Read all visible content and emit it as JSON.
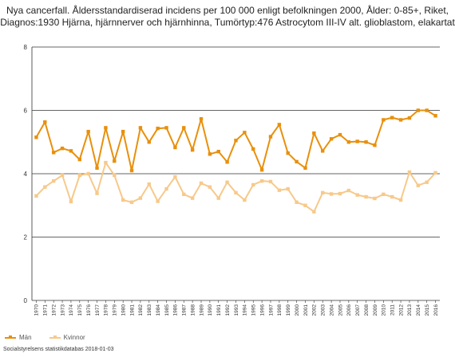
{
  "chart_data": {
    "type": "line",
    "title": "Nya cancerfall. Åldersstandardiserad incidens per 100 000 enligt befolkningen 2000, Ålder: 0-85+, Riket,",
    "subtitle": "Diagnos:1930 Hjärna, hjärnnerver och hjärnhinna, Tumörtyp:476 Astrocytom III-IV alt. glioblastom, elakartat",
    "xlabel": "",
    "ylabel": "",
    "ylim": [
      0,
      8
    ],
    "yticks": [
      0,
      2,
      4,
      6,
      8
    ],
    "grid": true,
    "legend_position": "bottom-left",
    "x": [
      "1970",
      "1971",
      "1972",
      "1973",
      "1974",
      "1975",
      "1976",
      "1977",
      "1978",
      "1979",
      "1980",
      "1981",
      "1982",
      "1983",
      "1984",
      "1985",
      "1986",
      "1987",
      "1988",
      "1989",
      "1990",
      "1991",
      "1992",
      "1993",
      "1994",
      "1995",
      "1996",
      "1997",
      "1998",
      "1999",
      "2000",
      "2001",
      "2002",
      "2003",
      "2004",
      "2005",
      "2006",
      "2007",
      "2008",
      "2009",
      "2010",
      "2011",
      "2012",
      "2013",
      "2014",
      "2015",
      "2016"
    ],
    "series": [
      {
        "name": "Män",
        "color": "#e8900c",
        "values": [
          5.15,
          5.63,
          4.67,
          4.8,
          4.72,
          4.45,
          5.33,
          4.18,
          5.45,
          4.4,
          5.33,
          4.1,
          5.45,
          5.0,
          5.43,
          5.45,
          4.83,
          5.45,
          4.75,
          5.73,
          4.62,
          4.7,
          4.37,
          5.05,
          5.3,
          4.78,
          4.12,
          5.17,
          5.55,
          4.65,
          4.38,
          4.18,
          5.28,
          4.72,
          5.1,
          5.23,
          5.0,
          5.02,
          5.0,
          4.9,
          5.7,
          5.77,
          5.7,
          5.76,
          6.0,
          6.0,
          5.83
        ]
      },
      {
        "name": "Kvinnor",
        "color": "#f7c98a",
        "values": [
          3.3,
          3.58,
          3.77,
          3.95,
          3.12,
          3.95,
          4.0,
          3.38,
          4.35,
          3.95,
          3.17,
          3.1,
          3.23,
          3.67,
          3.13,
          3.52,
          3.9,
          3.35,
          3.23,
          3.7,
          3.58,
          3.23,
          3.73,
          3.4,
          3.17,
          3.65,
          3.77,
          3.75,
          3.48,
          3.52,
          3.1,
          3.0,
          2.8,
          3.4,
          3.36,
          3.37,
          3.47,
          3.33,
          3.27,
          3.22,
          3.35,
          3.27,
          3.17,
          4.05,
          3.63,
          3.73,
          4.03
        ]
      }
    ]
  },
  "source": "Socialstyrelsens statistikdatabas 2018-01-03"
}
